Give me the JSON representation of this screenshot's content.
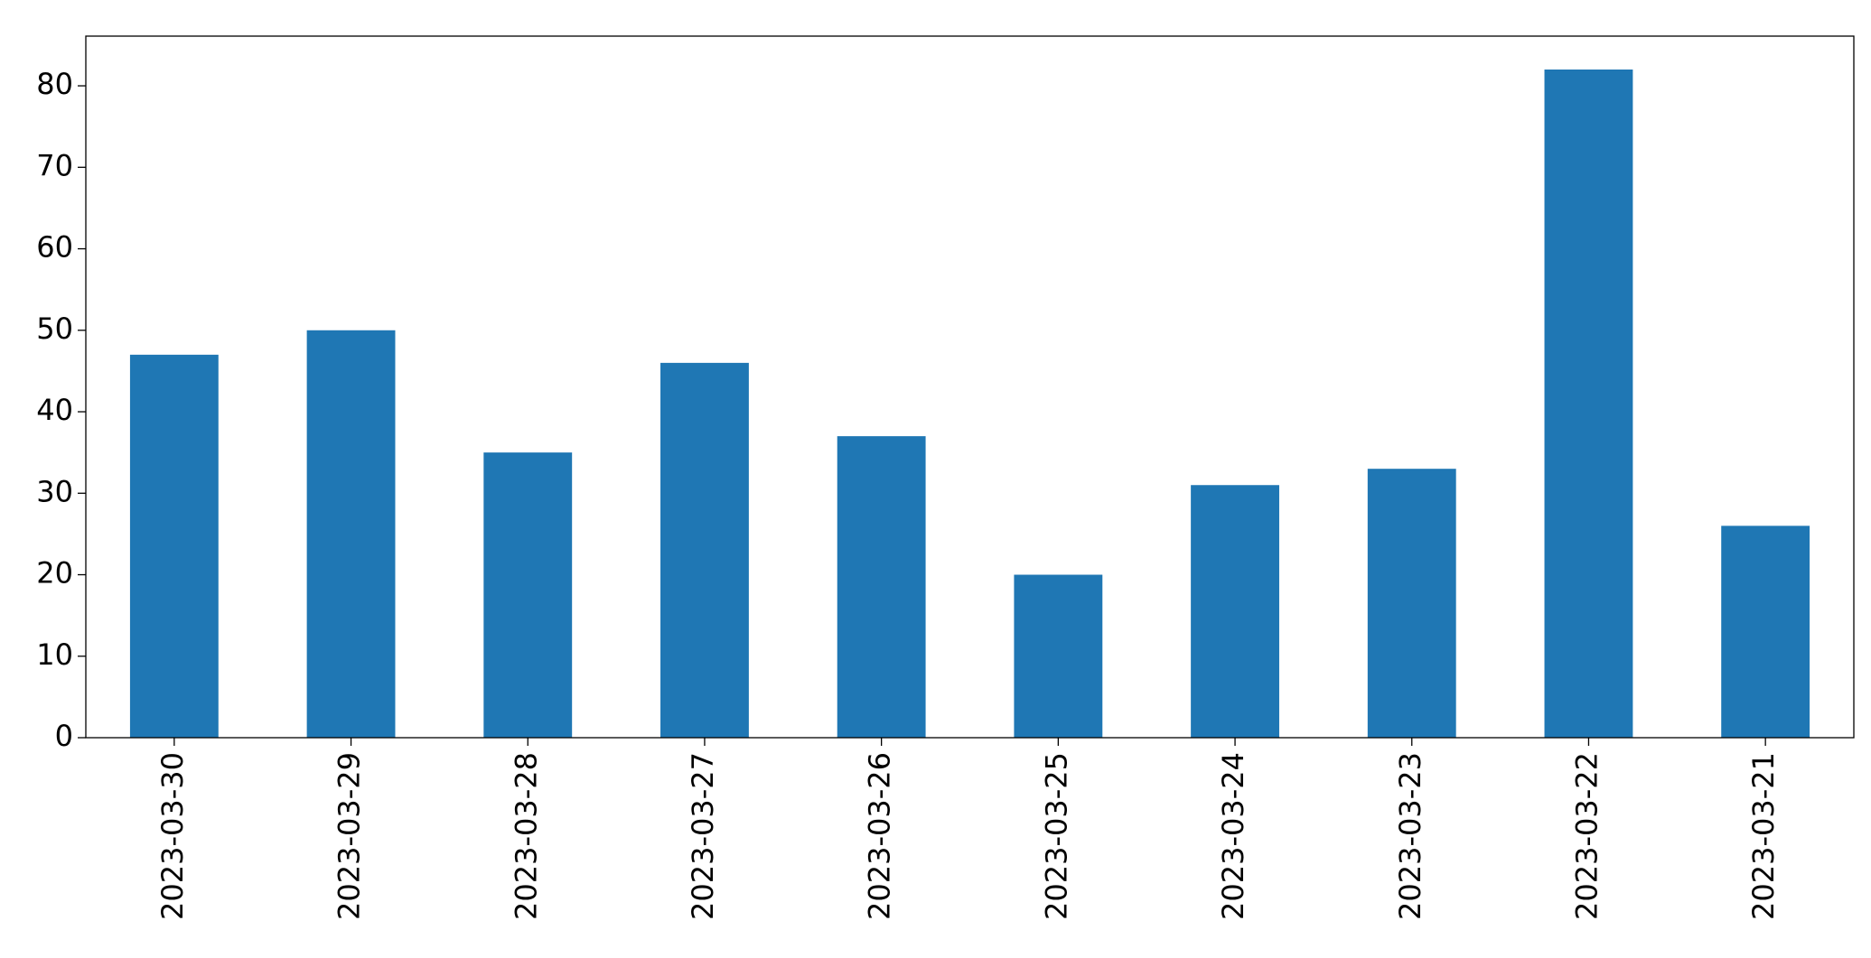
{
  "chart_data": {
    "type": "bar",
    "categories": [
      "2023-03-30",
      "2023-03-29",
      "2023-03-28",
      "2023-03-27",
      "2023-03-26",
      "2023-03-25",
      "2023-03-24",
      "2023-03-23",
      "2023-03-22",
      "2023-03-21"
    ],
    "values": [
      47,
      50,
      35,
      46,
      37,
      20,
      31,
      33,
      82,
      26
    ],
    "color": "#1f77b4",
    "ylim": [
      0,
      86.1
    ],
    "yticks": [
      0,
      10,
      20,
      30,
      40,
      50,
      60,
      70,
      80
    ],
    "grid": false
  }
}
